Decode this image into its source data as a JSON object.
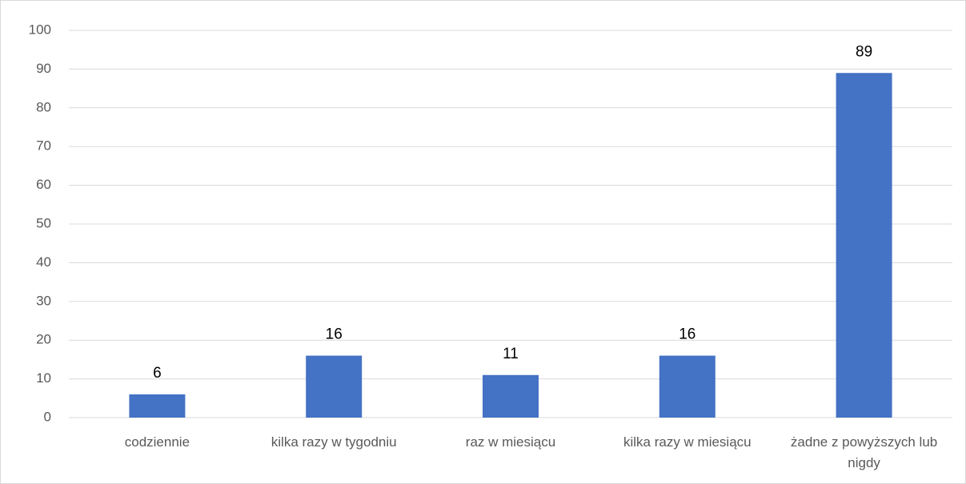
{
  "chart_data": {
    "type": "bar",
    "categories": [
      "codziennie",
      "kilka razy w tygodniu",
      "raz w miesiącu",
      "kilka razy w miesiącu",
      "żadne z powyższych lub nigdy"
    ],
    "values": [
      6,
      16,
      11,
      16,
      89
    ],
    "color": "#4472c4",
    "ylim": [
      0,
      100
    ],
    "yticks": [
      0,
      10,
      20,
      30,
      40,
      50,
      60,
      70,
      80,
      90,
      100
    ],
    "grid": true
  }
}
